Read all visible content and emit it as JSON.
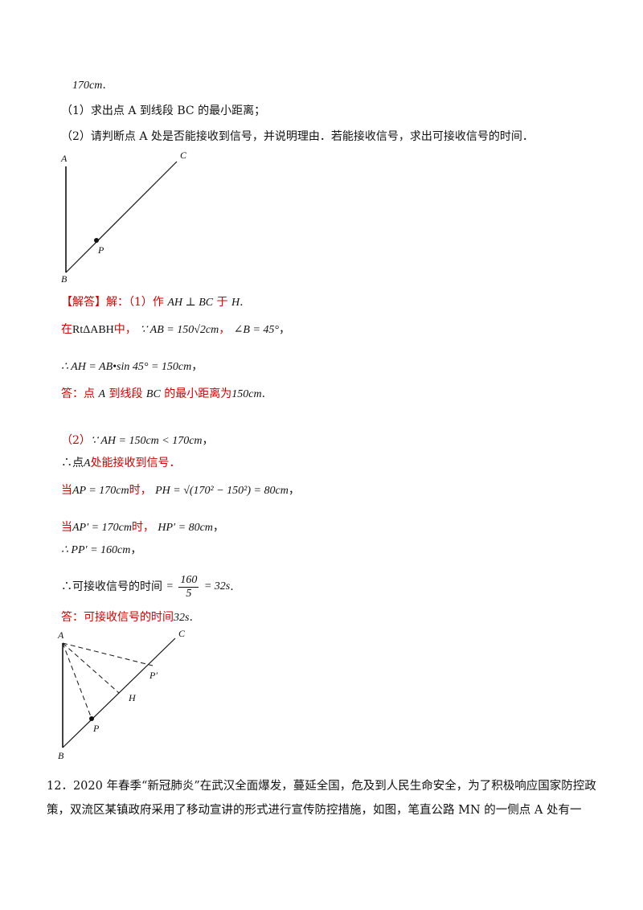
{
  "top": {
    "value": "170cm",
    "dot": ".",
    "q1": "（1）求出点 A 到线段 BC 的最小距离；",
    "q2": "（2）请判断点 A 处是否能接收到信号，并说明理由．若能接收信号，求出可接收信号的时间．"
  },
  "figure1": {
    "A": "A",
    "B": "B",
    "C": "C",
    "P": "P"
  },
  "solution": {
    "s1_prefix": "【解答】解：（1）作",
    "s1_math": "AH ⊥ BC",
    "s1_mid": "于",
    "s1_H": "H",
    "s1_end": ".",
    "s2_prefix": "在",
    "s2_rt": "RtΔABH",
    "s2_mid": "中，",
    "s2_math": "∵ AB = 150√2cm",
    "s2_angle": "∠B = 45°",
    "s2_end": "，",
    "s3": "∴ AH = AB•sin 45° = 150cm",
    "s3_end": "，",
    "s4_prefix": "答：点",
    "s4_A": "A",
    "s4_mid": "到线段",
    "s4_BC": "BC",
    "s4_mid2": "的最小距离为",
    "s4_val": "150cm",
    "s4_end": ".",
    "p2_prefix": "（2）",
    "p2_math": "∵ AH = 150cm < 170cm",
    "p2_end": "，",
    "p3_prefix": "∴点",
    "p3_A": "A",
    "p3_text": "处能接收到信号．",
    "p4_prefix": "当",
    "p4_math": "AP = 170cm",
    "p4_mid": "时，",
    "p4_eq": "PH = √(170² − 150²) = 80cm",
    "p4_end": "，",
    "p5_prefix": "当",
    "p5_math": "AP′ = 170cm",
    "p5_mid": "时，",
    "p5_eq": "HP′ = 80cm",
    "p5_end": "，",
    "p6": "∴ PP′ = 160cm",
    "p6_end": "，",
    "p7_prefix": "∴可接收信号的时间",
    "p7_eq": "=",
    "p7_num": "160",
    "p7_den": "5",
    "p7_res": "= 32s",
    "p7_end": ".",
    "p8_prefix": "答：可接收信号的时间",
    "p8_val": "32s",
    "p8_end": "."
  },
  "figure2": {
    "A": "A",
    "B": "B",
    "C": "C",
    "P": "P",
    "P2": "P′",
    "H": "H"
  },
  "problem12": {
    "text": "12．2020 年春季“新冠肺炎”在武汉全面爆发，蔓延全国，危及到人民生命安全，为了积极响应国家防控政策，双流区某镇政府采用了移动宣讲的形式进行宣传防控措施，如图，笔直公路 MN 的一侧点 A 处有一"
  }
}
